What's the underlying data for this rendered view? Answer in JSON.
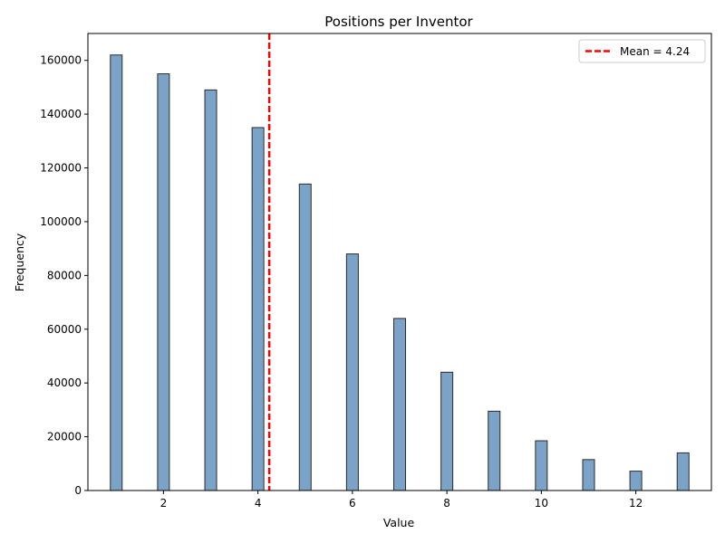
{
  "chart_data": {
    "type": "bar",
    "title": "Positions per Inventor",
    "xlabel": "Value",
    "ylabel": "Frequency",
    "xlim": [
      0.4,
      13.6
    ],
    "ylim": [
      0,
      170000
    ],
    "x_ticks": [
      2,
      4,
      6,
      8,
      10,
      12
    ],
    "y_ticks": [
      0,
      20000,
      40000,
      60000,
      80000,
      100000,
      120000,
      140000,
      160000
    ],
    "x": [
      1,
      2,
      3,
      4,
      5,
      6,
      7,
      8,
      9,
      10,
      11,
      12,
      13
    ],
    "values": [
      162000,
      155000,
      149000,
      135000,
      114000,
      88000,
      64000,
      44000,
      29500,
      18500,
      11500,
      7200,
      14000
    ],
    "bar_color": "#7ba3c8",
    "bar_edge_color": "#2b2b2b",
    "mean": {
      "value": 4.24,
      "label": "Mean = 4.24",
      "color": "#ff0000",
      "style": "dashed"
    },
    "legend_location": "top-right",
    "grid": false
  }
}
